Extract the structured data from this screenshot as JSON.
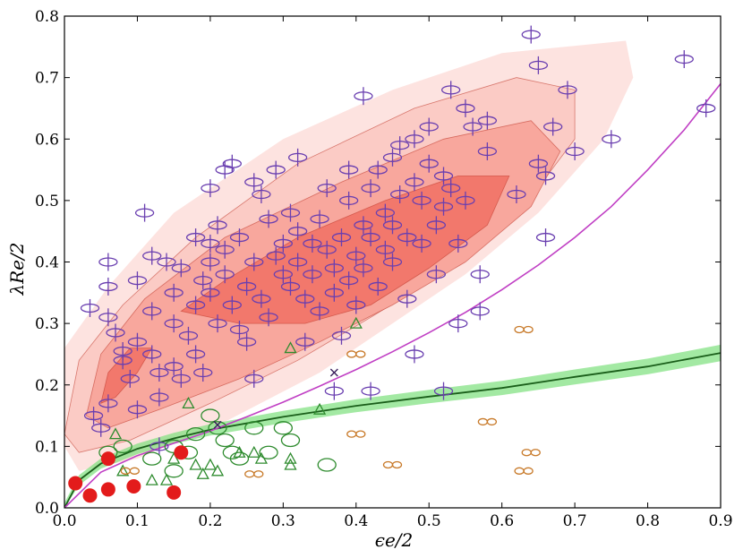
{
  "chart_data": {
    "type": "scatter",
    "title": "",
    "xlabel": "ϵe/2",
    "ylabel": "λRe/2",
    "xlim": [
      0.0,
      0.9
    ],
    "ylim": [
      0.0,
      0.8
    ],
    "grid": false,
    "x_ticks": [
      0.0,
      0.1,
      0.2,
      0.3,
      0.4,
      0.5,
      0.6,
      0.7,
      0.8,
      0.9
    ],
    "x_tick_labels": [
      "0.0",
      "0.1",
      "0.2",
      "0.3",
      "0.4",
      "0.5",
      "0.6",
      "0.7",
      "0.8",
      "0.9"
    ],
    "y_ticks": [
      0.0,
      0.1,
      0.2,
      0.3,
      0.4,
      0.5,
      0.6,
      0.7,
      0.8
    ],
    "y_tick_labels": [
      "0.0",
      "0.1",
      "0.2",
      "0.3",
      "0.4",
      "0.5",
      "0.6",
      "0.7",
      "0.8"
    ],
    "colors": {
      "fast_rotators": "#6a3fb0",
      "contour_fill": [
        "#fde3e0",
        "#fbcbc5",
        "#f8a79d",
        "#f2786c"
      ],
      "contour_edge": "#c0392b",
      "magenta_curve": "#c03fc4",
      "green_curve": "#1a5e1a",
      "green_band": "#7ce07c",
      "triangles": "#2e8b2e",
      "circles": "#2e8b2e",
      "infinity": "#c87a2a",
      "red_dots": "#e31b1b"
    },
    "contours": [
      [
        [
          0.0,
          0.1
        ],
        [
          0.0,
          0.26
        ],
        [
          0.06,
          0.36
        ],
        [
          0.15,
          0.48
        ],
        [
          0.3,
          0.6
        ],
        [
          0.45,
          0.68
        ],
        [
          0.6,
          0.74
        ],
        [
          0.77,
          0.76
        ],
        [
          0.78,
          0.7
        ],
        [
          0.74,
          0.6
        ],
        [
          0.65,
          0.48
        ],
        [
          0.55,
          0.38
        ],
        [
          0.45,
          0.3
        ],
        [
          0.35,
          0.22
        ],
        [
          0.22,
          0.14
        ],
        [
          0.1,
          0.08
        ],
        [
          0.02,
          0.06
        ]
      ],
      [
        [
          0.0,
          0.12
        ],
        [
          0.02,
          0.24
        ],
        [
          0.08,
          0.33
        ],
        [
          0.18,
          0.44
        ],
        [
          0.32,
          0.56
        ],
        [
          0.48,
          0.65
        ],
        [
          0.62,
          0.7
        ],
        [
          0.7,
          0.68
        ],
        [
          0.7,
          0.6
        ],
        [
          0.63,
          0.49
        ],
        [
          0.53,
          0.39
        ],
        [
          0.42,
          0.31
        ],
        [
          0.32,
          0.24
        ],
        [
          0.2,
          0.17
        ],
        [
          0.09,
          0.11
        ],
        [
          0.02,
          0.09
        ]
      ],
      [
        [
          0.03,
          0.15
        ],
        [
          0.05,
          0.25
        ],
        [
          0.11,
          0.34
        ],
        [
          0.22,
          0.44
        ],
        [
          0.38,
          0.53
        ],
        [
          0.52,
          0.6
        ],
        [
          0.64,
          0.63
        ],
        [
          0.68,
          0.58
        ],
        [
          0.64,
          0.49
        ],
        [
          0.55,
          0.4
        ],
        [
          0.45,
          0.33
        ],
        [
          0.35,
          0.27
        ],
        [
          0.24,
          0.21
        ],
        [
          0.13,
          0.16
        ],
        [
          0.06,
          0.13
        ]
      ],
      [
        [
          0.16,
          0.32
        ],
        [
          0.22,
          0.37
        ],
        [
          0.32,
          0.44
        ],
        [
          0.44,
          0.5
        ],
        [
          0.54,
          0.54
        ],
        [
          0.61,
          0.54
        ],
        [
          0.58,
          0.46
        ],
        [
          0.5,
          0.39
        ],
        [
          0.42,
          0.33
        ],
        [
          0.33,
          0.3
        ],
        [
          0.24,
          0.3
        ]
      ],
      [
        [
          0.05,
          0.17
        ],
        [
          0.06,
          0.22
        ],
        [
          0.09,
          0.26
        ],
        [
          0.12,
          0.26
        ],
        [
          0.1,
          0.22
        ],
        [
          0.07,
          0.18
        ]
      ]
    ],
    "series": [
      {
        "name": "fast rotators",
        "marker": "ellipse-cross",
        "points": [
          [
            0.035,
            0.325
          ],
          [
            0.06,
            0.4
          ],
          [
            0.06,
            0.36
          ],
          [
            0.06,
            0.31
          ],
          [
            0.07,
            0.285
          ],
          [
            0.08,
            0.255
          ],
          [
            0.08,
            0.24
          ],
          [
            0.09,
            0.21
          ],
          [
            0.1,
            0.27
          ],
          [
            0.1,
            0.37
          ],
          [
            0.11,
            0.48
          ],
          [
            0.12,
            0.41
          ],
          [
            0.12,
            0.32
          ],
          [
            0.12,
            0.25
          ],
          [
            0.13,
            0.22
          ],
          [
            0.13,
            0.18
          ],
          [
            0.14,
            0.4
          ],
          [
            0.15,
            0.35
          ],
          [
            0.15,
            0.3
          ],
          [
            0.15,
            0.23
          ],
          [
            0.16,
            0.21
          ],
          [
            0.16,
            0.39
          ],
          [
            0.17,
            0.28
          ],
          [
            0.18,
            0.25
          ],
          [
            0.18,
            0.44
          ],
          [
            0.18,
            0.33
          ],
          [
            0.19,
            0.37
          ],
          [
            0.19,
            0.22
          ],
          [
            0.2,
            0.52
          ],
          [
            0.2,
            0.43
          ],
          [
            0.2,
            0.4
          ],
          [
            0.2,
            0.35
          ],
          [
            0.21,
            0.3
          ],
          [
            0.21,
            0.46
          ],
          [
            0.22,
            0.55
          ],
          [
            0.22,
            0.42
          ],
          [
            0.22,
            0.38
          ],
          [
            0.23,
            0.56
          ],
          [
            0.23,
            0.33
          ],
          [
            0.24,
            0.44
          ],
          [
            0.24,
            0.29
          ],
          [
            0.25,
            0.36
          ],
          [
            0.25,
            0.27
          ],
          [
            0.26,
            0.53
          ],
          [
            0.26,
            0.4
          ],
          [
            0.26,
            0.21
          ],
          [
            0.27,
            0.51
          ],
          [
            0.27,
            0.34
          ],
          [
            0.28,
            0.47
          ],
          [
            0.28,
            0.31
          ],
          [
            0.29,
            0.55
          ],
          [
            0.29,
            0.41
          ],
          [
            0.3,
            0.43
          ],
          [
            0.3,
            0.38
          ],
          [
            0.31,
            0.48
          ],
          [
            0.31,
            0.36
          ],
          [
            0.32,
            0.57
          ],
          [
            0.32,
            0.45
          ],
          [
            0.32,
            0.4
          ],
          [
            0.33,
            0.34
          ],
          [
            0.33,
            0.27
          ],
          [
            0.34,
            0.43
          ],
          [
            0.34,
            0.38
          ],
          [
            0.35,
            0.47
          ],
          [
            0.35,
            0.32
          ],
          [
            0.36,
            0.52
          ],
          [
            0.36,
            0.42
          ],
          [
            0.37,
            0.39
          ],
          [
            0.37,
            0.35
          ],
          [
            0.38,
            0.44
          ],
          [
            0.38,
            0.28
          ],
          [
            0.39,
            0.55
          ],
          [
            0.39,
            0.5
          ],
          [
            0.39,
            0.37
          ],
          [
            0.4,
            0.41
          ],
          [
            0.4,
            0.33
          ],
          [
            0.41,
            0.67
          ],
          [
            0.41,
            0.46
          ],
          [
            0.41,
            0.39
          ],
          [
            0.42,
            0.52
          ],
          [
            0.42,
            0.44
          ],
          [
            0.43,
            0.55
          ],
          [
            0.43,
            0.36
          ],
          [
            0.44,
            0.48
          ],
          [
            0.44,
            0.42
          ],
          [
            0.45,
            0.57
          ],
          [
            0.45,
            0.46
          ],
          [
            0.45,
            0.4
          ],
          [
            0.46,
            0.59
          ],
          [
            0.46,
            0.51
          ],
          [
            0.47,
            0.44
          ],
          [
            0.47,
            0.34
          ],
          [
            0.48,
            0.6
          ],
          [
            0.48,
            0.53
          ],
          [
            0.48,
            0.25
          ],
          [
            0.49,
            0.5
          ],
          [
            0.49,
            0.43
          ],
          [
            0.5,
            0.62
          ],
          [
            0.5,
            0.56
          ],
          [
            0.51,
            0.46
          ],
          [
            0.51,
            0.38
          ],
          [
            0.52,
            0.54
          ],
          [
            0.52,
            0.49
          ],
          [
            0.53,
            0.68
          ],
          [
            0.53,
            0.52
          ],
          [
            0.54,
            0.43
          ],
          [
            0.54,
            0.3
          ],
          [
            0.55,
            0.65
          ],
          [
            0.55,
            0.5
          ],
          [
            0.56,
            0.62
          ],
          [
            0.57,
            0.38
          ],
          [
            0.57,
            0.32
          ],
          [
            0.58,
            0.58
          ],
          [
            0.58,
            0.63
          ],
          [
            0.62,
            0.51
          ],
          [
            0.64,
            0.77
          ],
          [
            0.65,
            0.56
          ],
          [
            0.65,
            0.72
          ],
          [
            0.66,
            0.44
          ],
          [
            0.66,
            0.54
          ],
          [
            0.67,
            0.62
          ],
          [
            0.69,
            0.68
          ],
          [
            0.7,
            0.58
          ],
          [
            0.75,
            0.6
          ],
          [
            0.85,
            0.73
          ],
          [
            0.88,
            0.65
          ],
          [
            0.37,
            0.19
          ],
          [
            0.42,
            0.19
          ],
          [
            0.52,
            0.19
          ],
          [
            0.06,
            0.17
          ],
          [
            0.04,
            0.15
          ],
          [
            0.05,
            0.13
          ],
          [
            0.1,
            0.16
          ],
          [
            0.13,
            0.1
          ]
        ]
      },
      {
        "name": "triangles",
        "marker": "triangle",
        "points": [
          [
            0.07,
            0.12
          ],
          [
            0.08,
            0.06
          ],
          [
            0.12,
            0.045
          ],
          [
            0.14,
            0.045
          ],
          [
            0.15,
            0.08
          ],
          [
            0.17,
            0.17
          ],
          [
            0.18,
            0.07
          ],
          [
            0.19,
            0.055
          ],
          [
            0.2,
            0.07
          ],
          [
            0.21,
            0.06
          ],
          [
            0.24,
            0.09
          ],
          [
            0.26,
            0.09
          ],
          [
            0.27,
            0.08
          ],
          [
            0.31,
            0.07
          ],
          [
            0.31,
            0.08
          ],
          [
            0.31,
            0.26
          ],
          [
            0.35,
            0.16
          ],
          [
            0.4,
            0.3
          ]
        ]
      },
      {
        "name": "circles",
        "marker": "circle",
        "points": [
          [
            0.06,
            0.09
          ],
          [
            0.08,
            0.1
          ],
          [
            0.12,
            0.08
          ],
          [
            0.15,
            0.06
          ],
          [
            0.15,
            0.1
          ],
          [
            0.17,
            0.09
          ],
          [
            0.18,
            0.12
          ],
          [
            0.2,
            0.15
          ],
          [
            0.21,
            0.13
          ],
          [
            0.22,
            0.11
          ],
          [
            0.23,
            0.09
          ],
          [
            0.24,
            0.08
          ],
          [
            0.26,
            0.13
          ],
          [
            0.28,
            0.09
          ],
          [
            0.3,
            0.13
          ],
          [
            0.31,
            0.11
          ],
          [
            0.36,
            0.07
          ]
        ]
      },
      {
        "name": "infinity",
        "marker": "infinity",
        "points": [
          [
            0.09,
            0.06
          ],
          [
            0.26,
            0.055
          ],
          [
            0.4,
            0.25
          ],
          [
            0.4,
            0.12
          ],
          [
            0.45,
            0.07
          ],
          [
            0.58,
            0.14
          ],
          [
            0.63,
            0.29
          ],
          [
            0.63,
            0.06
          ],
          [
            0.64,
            0.09
          ]
        ]
      },
      {
        "name": "red dots",
        "marker": "filled-circle",
        "points": [
          [
            0.015,
            0.04
          ],
          [
            0.035,
            0.02
          ],
          [
            0.06,
            0.03
          ],
          [
            0.06,
            0.08
          ],
          [
            0.095,
            0.035
          ],
          [
            0.15,
            0.025
          ],
          [
            0.16,
            0.09
          ]
        ]
      },
      {
        "name": "crosses",
        "marker": "x",
        "points": [
          [
            0.21,
            0.135
          ],
          [
            0.37,
            0.22
          ]
        ]
      }
    ],
    "curves": [
      {
        "name": "magenta curve",
        "x": [
          0.0,
          0.05,
          0.1,
          0.15,
          0.2,
          0.25,
          0.3,
          0.35,
          0.4,
          0.45,
          0.5,
          0.55,
          0.6,
          0.65,
          0.7,
          0.75,
          0.8,
          0.85,
          0.9
        ],
        "y": [
          0.0,
          0.058,
          0.085,
          0.105,
          0.125,
          0.148,
          0.172,
          0.198,
          0.225,
          0.254,
          0.285,
          0.318,
          0.355,
          0.395,
          0.44,
          0.49,
          0.55,
          0.615,
          0.69
        ]
      },
      {
        "name": "green curve",
        "x": [
          0.0,
          0.02,
          0.05,
          0.1,
          0.15,
          0.2,
          0.3,
          0.4,
          0.5,
          0.6,
          0.7,
          0.8,
          0.9
        ],
        "y": [
          0.0,
          0.045,
          0.072,
          0.096,
          0.113,
          0.127,
          0.148,
          0.166,
          0.181,
          0.195,
          0.213,
          0.23,
          0.252
        ]
      }
    ]
  }
}
